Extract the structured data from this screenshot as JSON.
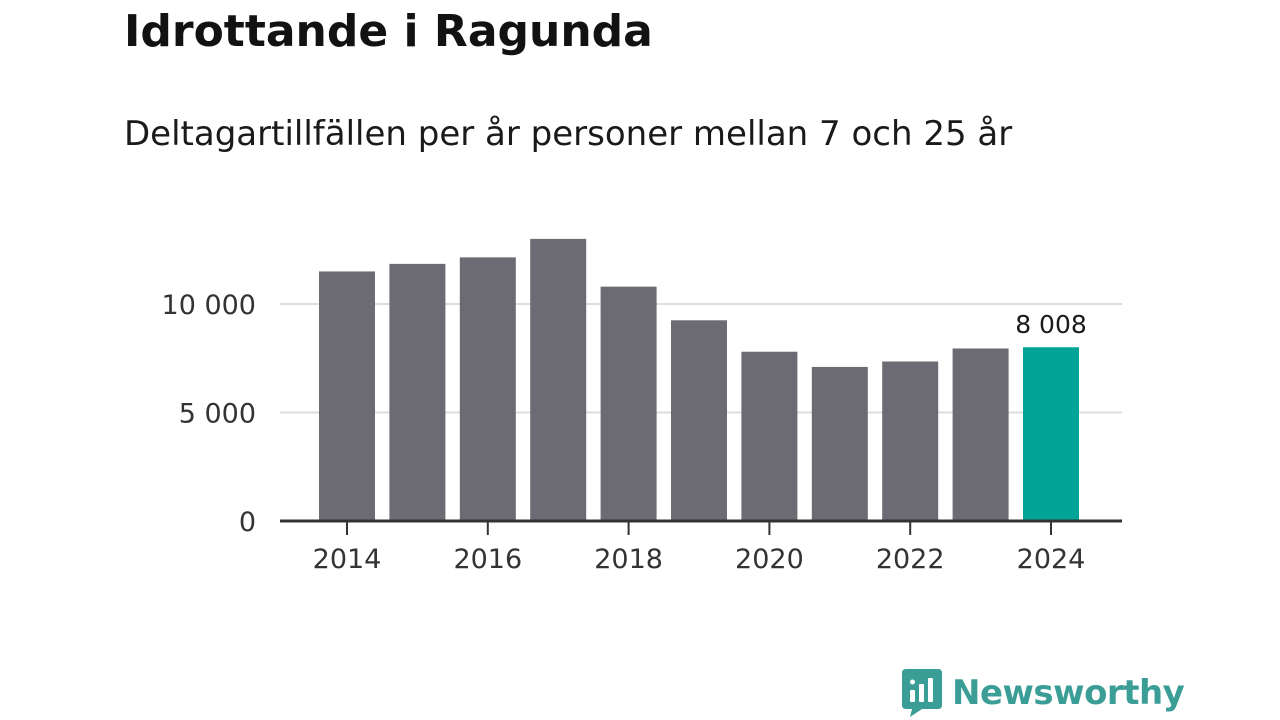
{
  "header": {
    "title": "Idrottande i Ragunda",
    "subtitle": "Deltagartillfällen per år personer mellan 7 och 25 år"
  },
  "brand": {
    "name": "Newsworthy",
    "color": "#3b9e96"
  },
  "chart_data": {
    "type": "bar",
    "title": "Idrottande i Ragunda",
    "subtitle": "Deltagartillfällen per år personer mellan 7 och 25 år",
    "xlabel": "",
    "ylabel": "",
    "categories": [
      "2014",
      "2015",
      "2016",
      "2017",
      "2018",
      "2019",
      "2020",
      "2021",
      "2022",
      "2023",
      "2024"
    ],
    "values": [
      11500,
      11850,
      12150,
      13000,
      10800,
      9250,
      7800,
      7100,
      7350,
      7950,
      8008
    ],
    "ylim": [
      0,
      13000
    ],
    "y_ticks": [
      0,
      5000,
      10000
    ],
    "y_tick_labels": [
      "0",
      "5 000",
      "10 000"
    ],
    "x_tick_labels": [
      "2014",
      "2016",
      "2018",
      "2020",
      "2022",
      "2024"
    ],
    "highlight_index": 10,
    "highlight_label": "8 008",
    "colors": {
      "bar": "#6c6b73",
      "highlight": "#00a597",
      "grid": "#dddddd",
      "axis": "#333333"
    },
    "grid": true,
    "legend": "none"
  }
}
